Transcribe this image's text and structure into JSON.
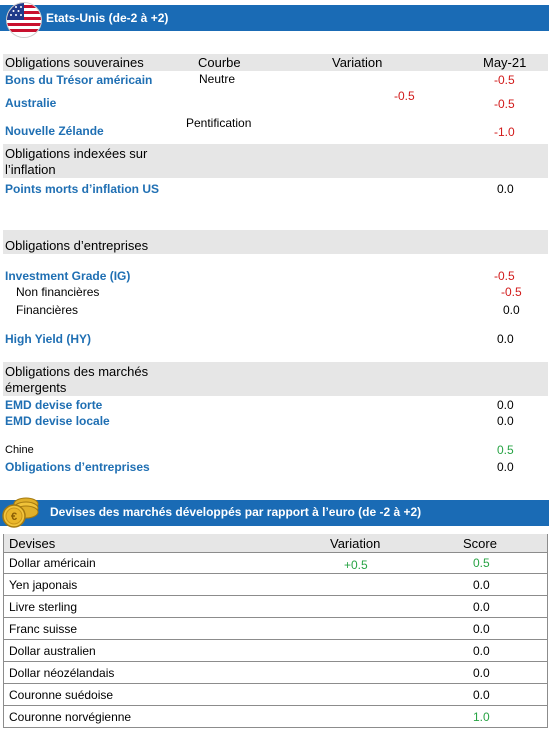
{
  "section1": {
    "title": "Etats-Unis (de-2 à +2)",
    "icon": "us-flag-icon",
    "headers": {
      "obligations": "Obligations souveraines",
      "courbe": "Courbe",
      "variation": "Variation",
      "date": "May-21"
    },
    "sovereign": [
      {
        "label": "Bons du Trésor américain",
        "courbe": "Neutre",
        "score": "-0.5"
      },
      {
        "label": "Australie",
        "score": "-0.5"
      },
      {
        "label": "Nouvelle Zélande",
        "courbe": "Pentification",
        "score": "-1.0"
      }
    ],
    "sovereign_variation": "-0.5",
    "indexed_header_line1": "Obligations indexées sur",
    "indexed_header_line2": "l’inflation",
    "breakeven": {
      "label": "Points morts d’inflation  US",
      "score": "0.0"
    },
    "corporate_header": "Obligations d’entreprises",
    "ig": {
      "label": "Investment Grade (IG)",
      "score": "-0.5"
    },
    "non_financial": {
      "label": "Non financières",
      "score": "-0.5"
    },
    "financial": {
      "label": "Financières",
      "score": "0.0"
    },
    "hy": {
      "label": "High Yield (HY)",
      "score": "0.0"
    },
    "em_header_line1": "Obligations des marchés",
    "em_header_line2": "émergents",
    "emd_hard": {
      "label": "EMD devise forte",
      "score": "0.0"
    },
    "emd_local": {
      "label": "EMD devise locale",
      "score": "0.0"
    },
    "china": {
      "label": "Chine",
      "score": "0.5"
    },
    "em_corp": {
      "label": "Obligations  d’entreprises",
      "score": "0.0"
    }
  },
  "section2": {
    "title": "Devises des marchés développés par rapport à l’euro (de -2 à +2)",
    "icon": "euro-coins-icon",
    "headers": {
      "devises": "Devises",
      "variation": "Variation",
      "score": "Score"
    },
    "rows": [
      {
        "name": "Dollar américain",
        "variation": "+0.5",
        "score": "0.5",
        "score_color": "green"
      },
      {
        "name": "Yen japonais",
        "variation": "",
        "score": "0.0",
        "score_color": "black"
      },
      {
        "name": "Livre sterling",
        "variation": "",
        "score": "0.0",
        "score_color": "black"
      },
      {
        "name": "Franc suisse",
        "variation": "",
        "score": "0.0",
        "score_color": "black"
      },
      {
        "name": "Dollar australien",
        "variation": "",
        "score": "0.0",
        "score_color": "black"
      },
      {
        "name": "Dollar néozélandais",
        "variation": "",
        "score": "0.0",
        "score_color": "black"
      },
      {
        "name": "Couronne suédoise",
        "variation": "",
        "score": "0.0",
        "score_color": "black"
      },
      {
        "name": "Couronne norvégienne",
        "variation": "",
        "score": "1.0",
        "score_color": "green"
      }
    ]
  },
  "colors": {
    "band": "#1a6bb5",
    "label_blue": "#1f6fb3",
    "negative": "#d11a1a",
    "positive": "#27a344",
    "grey_row": "#e6e6e6"
  }
}
